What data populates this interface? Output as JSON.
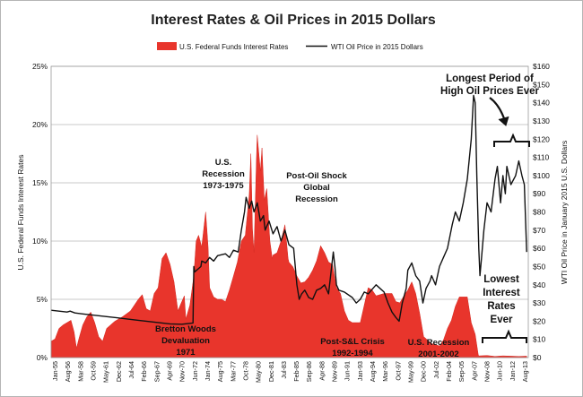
{
  "chart_data": {
    "type": "area+line",
    "title": "Interest Rates & Oil Prices in 2015 Dollars",
    "ylabel_left": "U.S. Federal Funds Interest Rates",
    "ylabel_right": "WTI Oil Price in January 2015 U.S. Dollars",
    "grid": true,
    "legend": {
      "placement": "top-center"
    },
    "y_left": {
      "min": 0,
      "max": 25,
      "ticks": [
        "0%",
        "5%",
        "10%",
        "15%",
        "20%",
        "25%"
      ]
    },
    "y_right": {
      "min": 0,
      "max": 160,
      "ticks": [
        "$0",
        "$10",
        "$20",
        "$30",
        "$40",
        "$50",
        "$60",
        "$70",
        "$80",
        "$90",
        "$100",
        "$110",
        "$120",
        "$130",
        "$140",
        "$150",
        "$160"
      ]
    },
    "x_range": [
      1955.0,
      2015.2
    ],
    "x_ticks": [
      "Jan-55",
      "Aug-56",
      "Mar-58",
      "Oct-59",
      "May-61",
      "Dec-62",
      "Jul-64",
      "Feb-66",
      "Sep-67",
      "Apr-69",
      "Nov-70",
      "Jun-72",
      "Jan-74",
      "Aug-75",
      "Mar-77",
      "Oct-78",
      "May-80",
      "Dec-81",
      "Jul-83",
      "Feb-85",
      "Sep-86",
      "Apr-88",
      "Nov-89",
      "Jun-91",
      "Jan-93",
      "Aug-94",
      "Mar-96",
      "Oct-97",
      "May-99",
      "Dec-00",
      "Jul-02",
      "Feb-04",
      "Sep-05",
      "Apr-07",
      "Nov-08",
      "Jun-10",
      "Jan-12",
      "Aug-13"
    ],
    "series": [
      {
        "name": "U.S. Federal Funds Interest Rates",
        "kind": "area",
        "color": "#e8352c",
        "x": [
          1955.0,
          1955.5,
          1956.0,
          1956.5,
          1957.0,
          1957.5,
          1957.9,
          1958.2,
          1958.5,
          1959.0,
          1959.5,
          1960.0,
          1960.5,
          1961.0,
          1961.5,
          1962.0,
          1963.0,
          1964.0,
          1965.0,
          1966.0,
          1966.5,
          1967.0,
          1967.5,
          1968.0,
          1968.5,
          1969.0,
          1969.5,
          1970.0,
          1970.5,
          1971.0,
          1971.3,
          1971.8,
          1972.0,
          1972.5,
          1973.0,
          1973.3,
          1973.6,
          1974.0,
          1974.5,
          1974.8,
          1975.0,
          1975.5,
          1976.0,
          1976.5,
          1977.0,
          1977.5,
          1978.0,
          1978.5,
          1979.0,
          1979.5,
          1980.0,
          1980.2,
          1980.4,
          1980.6,
          1980.9,
          1981.0,
          1981.4,
          1981.6,
          1981.9,
          1982.2,
          1982.6,
          1982.9,
          1983.0,
          1983.5,
          1984.0,
          1984.5,
          1984.9,
          1985.0,
          1985.5,
          1986.0,
          1986.5,
          1987.0,
          1987.5,
          1988.0,
          1988.5,
          1989.0,
          1989.5,
          1990.0,
          1990.5,
          1991.0,
          1991.5,
          1992.0,
          1992.5,
          1993.0,
          1994.0,
          1994.5,
          1995.0,
          1995.5,
          1996.0,
          1997.0,
          1998.0,
          1998.5,
          1999.0,
          1999.5,
          2000.0,
          2000.5,
          2001.0,
          2001.5,
          2002.0,
          2003.0,
          2004.0,
          2004.5,
          2005.0,
          2005.5,
          2006.0,
          2006.5,
          2007.0,
          2007.5,
          2008.0,
          2008.5,
          2008.9,
          2009.0,
          2010.0,
          2011.0,
          2012.0,
          2013.0,
          2014.0,
          2015.0
        ],
        "y": [
          1.4,
          1.6,
          2.5,
          2.8,
          3.0,
          3.2,
          2.2,
          0.8,
          1.6,
          2.8,
          3.5,
          3.9,
          3.0,
          1.8,
          1.4,
          2.5,
          3.1,
          3.5,
          4.0,
          5.0,
          5.4,
          4.2,
          4.0,
          5.5,
          6.0,
          8.5,
          9.0,
          8.0,
          6.5,
          4.0,
          4.5,
          5.3,
          3.3,
          4.5,
          7.0,
          10.0,
          10.5,
          9.5,
          12.5,
          9.5,
          6.0,
          5.2,
          5.0,
          5.0,
          4.8,
          5.8,
          7.0,
          8.2,
          10.0,
          10.5,
          14.0,
          17.5,
          11.0,
          9.0,
          17.0,
          19.1,
          16.0,
          18.0,
          13.5,
          14.5,
          10.0,
          8.5,
          8.8,
          9.0,
          10.0,
          11.4,
          8.5,
          8.2,
          7.8,
          7.0,
          6.4,
          6.5,
          6.9,
          7.5,
          8.3,
          9.6,
          9.0,
          8.2,
          8.0,
          6.0,
          5.5,
          4.0,
          3.2,
          3.0,
          3.0,
          4.5,
          6.0,
          5.8,
          5.3,
          5.5,
          5.5,
          4.8,
          4.7,
          5.3,
          5.8,
          6.5,
          5.5,
          3.8,
          1.8,
          1.2,
          1.0,
          1.5,
          2.5,
          3.2,
          4.4,
          5.2,
          5.2,
          5.2,
          3.0,
          2.0,
          0.2,
          0.15,
          0.18,
          0.1,
          0.15,
          0.12,
          0.1,
          0.12
        ]
      },
      {
        "name": "WTI Oil Price in 2015 Dollars",
        "kind": "line",
        "color": "#111111",
        "x": [
          1955.0,
          1956.0,
          1957.0,
          1957.4,
          1958.0,
          1959.0,
          1960.0,
          1962.0,
          1964.0,
          1966.0,
          1968.0,
          1970.0,
          1971.5,
          1972.9,
          1973.0,
          1973.1,
          1973.9,
          1974.0,
          1974.5,
          1975.0,
          1975.5,
          1976.0,
          1977.0,
          1977.5,
          1978.0,
          1978.6,
          1979.0,
          1979.4,
          1979.6,
          1980.0,
          1980.3,
          1980.6,
          1981.0,
          1981.4,
          1981.8,
          1982.0,
          1982.5,
          1983.0,
          1983.5,
          1984.0,
          1984.5,
          1985.0,
          1985.6,
          1986.0,
          1986.3,
          1986.6,
          1987.0,
          1987.5,
          1988.0,
          1988.5,
          1989.0,
          1989.5,
          1990.0,
          1990.6,
          1990.8,
          1991.0,
          1991.3,
          1992.0,
          1993.0,
          1993.5,
          1994.0,
          1994.5,
          1995.0,
          1996.0,
          1996.5,
          1997.0,
          1997.5,
          1998.0,
          1998.5,
          1998.9,
          1999.3,
          1999.8,
          2000.0,
          2000.5,
          2001.0,
          2001.5,
          2001.9,
          2002.3,
          2002.8,
          2003.0,
          2003.5,
          2004.0,
          2004.5,
          2005.0,
          2005.6,
          2006.0,
          2006.5,
          2007.0,
          2007.5,
          2008.0,
          2008.3,
          2008.5,
          2008.7,
          2008.95,
          2009.1,
          2009.3,
          2009.6,
          2010.0,
          2010.5,
          2011.0,
          2011.3,
          2011.7,
          2012.0,
          2012.3,
          2012.5,
          2013.0,
          2013.6,
          2014.0,
          2014.4,
          2014.7,
          2015.0
        ],
        "y": [
          26,
          25.5,
          25,
          25.5,
          24.5,
          24,
          23.5,
          22.5,
          21.5,
          20.5,
          19.5,
          18.5,
          18.3,
          19,
          50,
          47,
          50,
          53,
          52,
          55,
          53,
          56,
          57,
          55,
          59,
          58,
          70,
          80,
          88,
          82,
          86,
          80,
          85,
          75,
          78,
          70,
          75,
          68,
          72,
          64,
          70,
          62,
          60,
          40,
          32,
          35,
          37,
          33,
          32,
          37,
          38,
          40,
          35,
          58,
          50,
          40,
          37,
          36,
          33,
          30,
          32,
          36,
          35,
          40,
          38,
          36,
          30,
          25,
          22,
          20,
          30,
          38,
          48,
          52,
          45,
          42,
          30,
          38,
          42,
          45,
          40,
          50,
          55,
          60,
          73,
          80,
          75,
          85,
          98,
          120,
          144,
          140,
          100,
          60,
          45,
          55,
          70,
          85,
          80,
          98,
          105,
          85,
          100,
          90,
          105,
          95,
          100,
          108,
          100,
          95,
          58
        ]
      }
    ]
  },
  "annotations": {
    "recession_1973": [
      "U.S.",
      "Recession",
      "1973-1975"
    ],
    "post_oil_shock": [
      "Post-Oil Shock",
      "Global",
      "Recession"
    ],
    "bretton_woods": [
      "Bretton Woods",
      "Devaluation",
      "1971"
    ],
    "sl_crisis": [
      "Post-S&L Crisis",
      "1992-1994"
    ],
    "recession_2001": [
      "U.S. Recession",
      "2001-2002"
    ],
    "longest_period": [
      "Longest Period of",
      "High Oil Prices Ever"
    ],
    "lowest_rates": [
      "Lowest",
      "Interest",
      "Rates",
      "Ever"
    ]
  }
}
